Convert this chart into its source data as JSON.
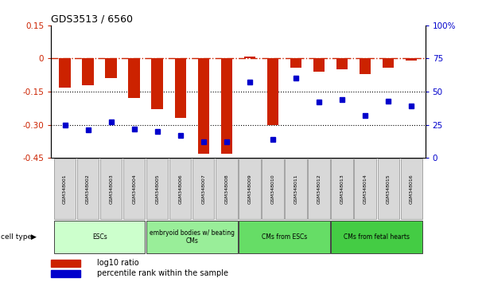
{
  "title": "GDS3513 / 6560",
  "samples": [
    "GSM348001",
    "GSM348002",
    "GSM348003",
    "GSM348004",
    "GSM348005",
    "GSM348006",
    "GSM348007",
    "GSM348008",
    "GSM348009",
    "GSM348010",
    "GSM348011",
    "GSM348012",
    "GSM348013",
    "GSM348014",
    "GSM348015",
    "GSM348016"
  ],
  "log10_ratio": [
    -0.13,
    -0.12,
    -0.09,
    -0.18,
    -0.23,
    -0.27,
    -0.43,
    -0.43,
    0.01,
    -0.3,
    -0.04,
    -0.06,
    -0.05,
    -0.07,
    -0.04,
    -0.01
  ],
  "percentile_rank": [
    25,
    21,
    27,
    22,
    20,
    17,
    12,
    12,
    57,
    14,
    60,
    42,
    44,
    32,
    43,
    39
  ],
  "bar_color": "#cc2200",
  "dot_color": "#0000cc",
  "ref_line_color": "#cc2200",
  "dotted_line_color": "#000000",
  "ylim_left": [
    -0.45,
    0.15
  ],
  "ylim_right": [
    0,
    100
  ],
  "yticks_left": [
    0.15,
    0.0,
    -0.15,
    -0.3,
    -0.45
  ],
  "ytick_labels_left": [
    "0.15",
    "0",
    "-0.15",
    "-0.30",
    "-0.45"
  ],
  "yticks_right": [
    100,
    75,
    50,
    25,
    0
  ],
  "ytick_labels_right": [
    "100%",
    "75",
    "50",
    "25",
    "0"
  ],
  "cell_groups": [
    {
      "label": "ESCs",
      "start": 0,
      "end": 4,
      "color": "#ccffcc"
    },
    {
      "label": "embryoid bodies w/ beating\nCMs",
      "start": 4,
      "end": 8,
      "color": "#99ee99"
    },
    {
      "label": "CMs from ESCs",
      "start": 8,
      "end": 12,
      "color": "#66dd66"
    },
    {
      "label": "CMs from fetal hearts",
      "start": 12,
      "end": 16,
      "color": "#44cc44"
    }
  ],
  "legend_items": [
    {
      "label": "log10 ratio",
      "color": "#cc2200"
    },
    {
      "label": "percentile rank within the sample",
      "color": "#0000cc"
    }
  ],
  "cell_type_label": "cell type",
  "background_color": "#ffffff",
  "grid_dotted_vals": [
    -0.15,
    -0.3
  ],
  "ref_line_val": 0.0,
  "cell_colors": [
    "#ccffcc",
    "#99ee99",
    "#66dd66",
    "#44cc44"
  ]
}
